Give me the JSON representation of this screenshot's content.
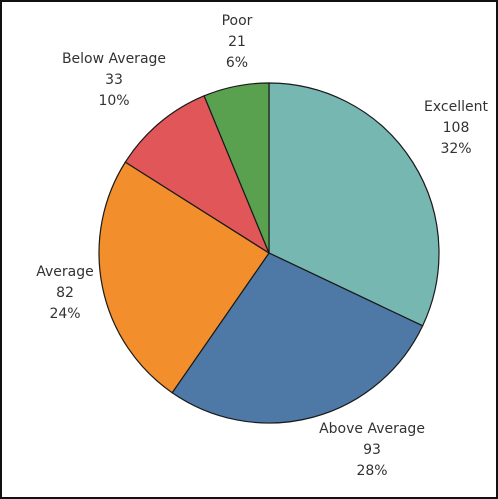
{
  "chart_data": {
    "type": "pie",
    "start_angle_deg": 0,
    "direction": "clockwise",
    "slices": [
      {
        "label": "Excellent",
        "value": 108,
        "percent": "32%",
        "color": "#76b7b2"
      },
      {
        "label": "Above Average",
        "value": 93,
        "percent": "28%",
        "color": "#4e79a7"
      },
      {
        "label": "Average",
        "value": 82,
        "percent": "24%",
        "color": "#f28e2b"
      },
      {
        "label": "Below Average",
        "value": 33,
        "percent": "10%",
        "color": "#e15759"
      },
      {
        "label": "Poor",
        "value": 21,
        "percent": "6%",
        "color": "#59a14f"
      }
    ],
    "value_labels": [
      "108",
      "93",
      "82",
      "33",
      "21"
    ]
  }
}
